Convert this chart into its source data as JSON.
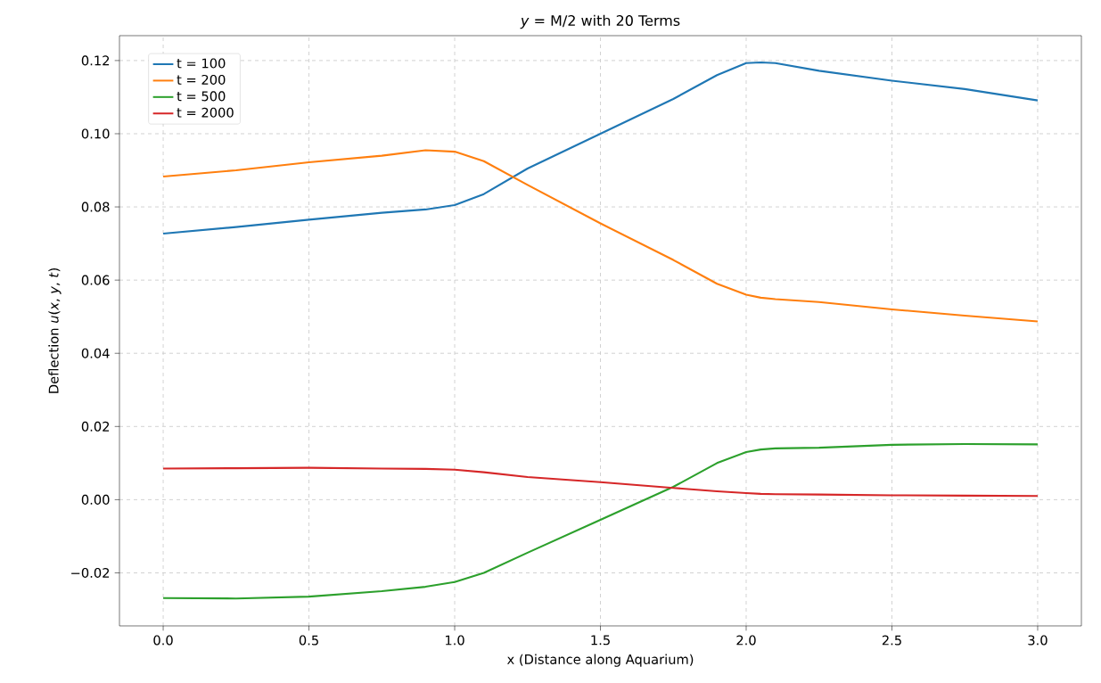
{
  "chart_data": {
    "type": "line",
    "title": "*y* = M/2 with 20 Terms",
    "xlabel": "x (Distance along Aquarium)",
    "ylabel": "Deflection *u*(*x*, *y*, *t*)",
    "x": [
      0,
      0.25,
      0.5,
      0.75,
      0.9,
      1.0,
      1.1,
      1.25,
      1.5,
      1.75,
      1.9,
      2.0,
      2.05,
      2.1,
      2.25,
      2.5,
      2.75,
      3.0
    ],
    "series": [
      {
        "name": "t = 100",
        "color": "#1f77b4",
        "values": [
          0.0727,
          0.0745,
          0.0765,
          0.0784,
          0.0793,
          0.0805,
          0.0835,
          0.0905,
          0.1,
          0.1095,
          0.116,
          0.1193,
          0.1195,
          0.1193,
          0.1172,
          0.1145,
          0.1122,
          0.1091
        ]
      },
      {
        "name": "t = 200",
        "color": "#ff7f0e",
        "values": [
          0.0883,
          0.09,
          0.0922,
          0.094,
          0.0955,
          0.0951,
          0.0925,
          0.086,
          0.0755,
          0.0655,
          0.059,
          0.056,
          0.0552,
          0.0548,
          0.054,
          0.052,
          0.0503,
          0.0487
        ]
      },
      {
        "name": "t = 500",
        "color": "#2ca02c",
        "values": [
          -0.0269,
          -0.027,
          -0.0265,
          -0.025,
          -0.0238,
          -0.0225,
          -0.02,
          -0.0145,
          -0.0055,
          0.0035,
          0.01,
          0.013,
          0.0137,
          0.014,
          0.0142,
          0.015,
          0.0152,
          0.0151
        ]
      },
      {
        "name": "t = 2000",
        "color": "#d62728",
        "values": [
          0.0085,
          0.0086,
          0.0087,
          0.0085,
          0.0084,
          0.0082,
          0.0075,
          0.0062,
          0.0048,
          0.0032,
          0.0023,
          0.0018,
          0.0016,
          0.0015,
          0.0014,
          0.0012,
          0.0011,
          0.001
        ]
      }
    ],
    "xlim": [
      -0.15,
      3.15
    ],
    "ylim": [
      -0.0345,
      0.1268
    ],
    "xticks": [
      {
        "value": 0,
        "label": "0.0"
      },
      {
        "value": 0.5,
        "label": "0.5"
      },
      {
        "value": 1,
        "label": "1.0"
      },
      {
        "value": 1.5,
        "label": "1.5"
      },
      {
        "value": 2,
        "label": "2.0"
      },
      {
        "value": 2.5,
        "label": "2.5"
      },
      {
        "value": 3,
        "label": "3.0"
      }
    ],
    "yticks": [
      {
        "value": -0.02,
        "label": "−0.02"
      },
      {
        "value": 0,
        "label": "0.00"
      },
      {
        "value": 0.02,
        "label": "0.02"
      },
      {
        "value": 0.04,
        "label": "0.04"
      },
      {
        "value": 0.06,
        "label": "0.06"
      },
      {
        "value": 0.08,
        "label": "0.08"
      },
      {
        "value": 0.1,
        "label": "0.10"
      },
      {
        "value": 0.12,
        "label": "0.12"
      }
    ],
    "grid": true,
    "legend": "top left",
    "marker": "none",
    "line_style": "solid"
  }
}
